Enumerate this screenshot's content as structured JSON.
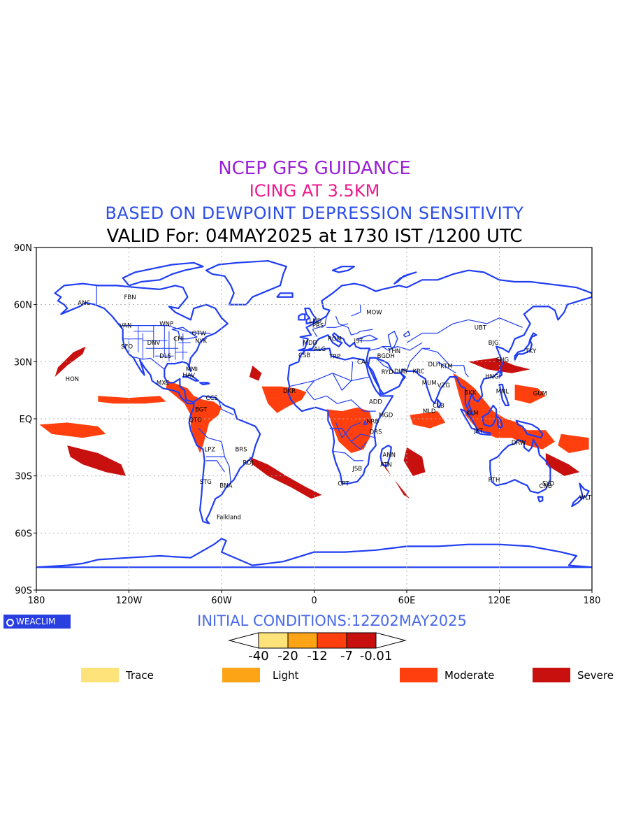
{
  "header": {
    "line1": "NCEP GFS GUIDANCE",
    "line2": "ICING AT 3.5KM",
    "line3": "BASED ON DEWPOINT DEPRESSION SENSITIVITY",
    "line4": "VALID For: 04MAY2025 at 1730 IST /1200 UTC"
  },
  "axes": {
    "lat_labels": [
      "90N",
      "60N",
      "30N",
      "EQ",
      "30S",
      "60S",
      "90S"
    ],
    "lon_labels": [
      "180",
      "120W",
      "60W",
      "0",
      "60E",
      "120E",
      "180"
    ]
  },
  "cities": [
    {
      "name": "ANC",
      "lon": -150,
      "lat": 61
    },
    {
      "name": "FBN",
      "lon": -120,
      "lat": 64
    },
    {
      "name": "VAN",
      "lon": -123,
      "lat": 49
    },
    {
      "name": "WNP",
      "lon": -97,
      "lat": 50
    },
    {
      "name": "DNV",
      "lon": -105,
      "lat": 40
    },
    {
      "name": "SFO",
      "lon": -122,
      "lat": 38
    },
    {
      "name": "CHI",
      "lon": -88,
      "lat": 42
    },
    {
      "name": "NYK",
      "lon": -74,
      "lat": 41
    },
    {
      "name": "OTW",
      "lon": -76,
      "lat": 45
    },
    {
      "name": "DLS",
      "lon": -97,
      "lat": 33
    },
    {
      "name": "MMI",
      "lon": -80,
      "lat": 26
    },
    {
      "name": "HAV",
      "lon": -82,
      "lat": 23
    },
    {
      "name": "HON",
      "lon": -158,
      "lat": 21
    },
    {
      "name": "MXC",
      "lon": -99,
      "lat": 19
    },
    {
      "name": "CCS",
      "lon": -67,
      "lat": 11
    },
    {
      "name": "BGT",
      "lon": -74,
      "lat": 5
    },
    {
      "name": "QTO",
      "lon": -78,
      "lat": -0.5
    },
    {
      "name": "LPZ",
      "lon": -68,
      "lat": -16
    },
    {
      "name": "BRS",
      "lon": -48,
      "lat": -16
    },
    {
      "name": "RDJ",
      "lon": -43,
      "lat": -23
    },
    {
      "name": "STG",
      "lon": -71,
      "lat": -33
    },
    {
      "name": "BNA",
      "lon": -58,
      "lat": -35
    },
    {
      "name": "Falkland",
      "lon": -60,
      "lat": -51.7
    },
    {
      "name": "LND",
      "lon": 0,
      "lat": 51.5
    },
    {
      "name": "PRS",
      "lon": 2,
      "lat": 49
    },
    {
      "name": "MDD",
      "lon": -4,
      "lat": 40
    },
    {
      "name": "ROM",
      "lon": 12,
      "lat": 42
    },
    {
      "name": "IST",
      "lon": 29,
      "lat": 41
    },
    {
      "name": "MOW",
      "lon": 37,
      "lat": 56
    },
    {
      "name": "CSB",
      "lon": -7,
      "lat": 33.5
    },
    {
      "name": "ALG",
      "lon": 3,
      "lat": 36.7
    },
    {
      "name": "TRP",
      "lon": 13,
      "lat": 32.9
    },
    {
      "name": "CAI",
      "lon": 31,
      "lat": 30
    },
    {
      "name": "BGDH",
      "lon": 44,
      "lat": 33
    },
    {
      "name": "THN",
      "lon": 51,
      "lat": 35.7
    },
    {
      "name": "RYD",
      "lon": 46.7,
      "lat": 24.7
    },
    {
      "name": "DUB",
      "lon": 55,
      "lat": 25
    },
    {
      "name": "KRC",
      "lon": 67,
      "lat": 25
    },
    {
      "name": "DLH",
      "lon": 77,
      "lat": 28.6
    },
    {
      "name": "KTM",
      "lon": 85,
      "lat": 27.7
    },
    {
      "name": "MUM",
      "lon": 73,
      "lat": 19
    },
    {
      "name": "VZG",
      "lon": 83,
      "lat": 17.7
    },
    {
      "name": "CLB",
      "lon": 80,
      "lat": 7
    },
    {
      "name": "MLD",
      "lon": 73.5,
      "lat": 4
    },
    {
      "name": "DKR",
      "lon": -17,
      "lat": 14.7
    },
    {
      "name": "ADD",
      "lon": 38.7,
      "lat": 9
    },
    {
      "name": "MGD",
      "lon": 45,
      "lat": 2
    },
    {
      "name": "NRB",
      "lon": 37,
      "lat": -1.3
    },
    {
      "name": "DRS",
      "lon": 39,
      "lat": -6.8
    },
    {
      "name": "ANN",
      "lon": 47.5,
      "lat": -18.9
    },
    {
      "name": "ATN",
      "lon": 46,
      "lat": -24
    },
    {
      "name": "JSB",
      "lon": 28,
      "lat": -26
    },
    {
      "name": "CPT",
      "lon": 18.5,
      "lat": -34
    },
    {
      "name": "UBT",
      "lon": 107,
      "lat": 48
    },
    {
      "name": "BJG",
      "lon": 116,
      "lat": 40
    },
    {
      "name": "SHG",
      "lon": 121,
      "lat": 31
    },
    {
      "name": "TKY",
      "lon": 140,
      "lat": 35.7
    },
    {
      "name": "HNG",
      "lon": 114,
      "lat": 22.3
    },
    {
      "name": "BKK",
      "lon": 100.5,
      "lat": 13.7
    },
    {
      "name": "MNL",
      "lon": 121,
      "lat": 14.6
    },
    {
      "name": "GUM",
      "lon": 145,
      "lat": 13.5
    },
    {
      "name": "KLM",
      "lon": 101.7,
      "lat": 3.1
    },
    {
      "name": "JKT",
      "lon": 106.8,
      "lat": -6.2
    },
    {
      "name": "DRW",
      "lon": 131,
      "lat": -12.5
    },
    {
      "name": "PTH",
      "lon": 116,
      "lat": -32
    },
    {
      "name": "SYD",
      "lon": 151,
      "lat": -33.9
    },
    {
      "name": "CNB",
      "lon": 149,
      "lat": -35.3
    },
    {
      "name": "WLT",
      "lon": 175,
      "lat": -41.3
    }
  ],
  "footer": {
    "brand": "WEACLIM",
    "initial": "INITIAL CONDITIONS:12Z02MAY2025"
  },
  "colorbar": {
    "colors": [
      "#fde37a",
      "#fca316",
      "#ff3f0d",
      "#c8100f"
    ],
    "ticks": [
      "-40",
      "-20",
      "-12",
      "-7",
      "-0.01"
    ]
  },
  "legend": [
    {
      "label": "Trace",
      "color": "#fde37a"
    },
    {
      "label": "Light",
      "color": "#fca316"
    },
    {
      "label": "Moderate",
      "color": "#ff3f0d"
    },
    {
      "label": "Severe",
      "color": "#c8100f"
    }
  ],
  "colors": {
    "coast": "#1f3df2",
    "grid": "#b0b0b0"
  }
}
